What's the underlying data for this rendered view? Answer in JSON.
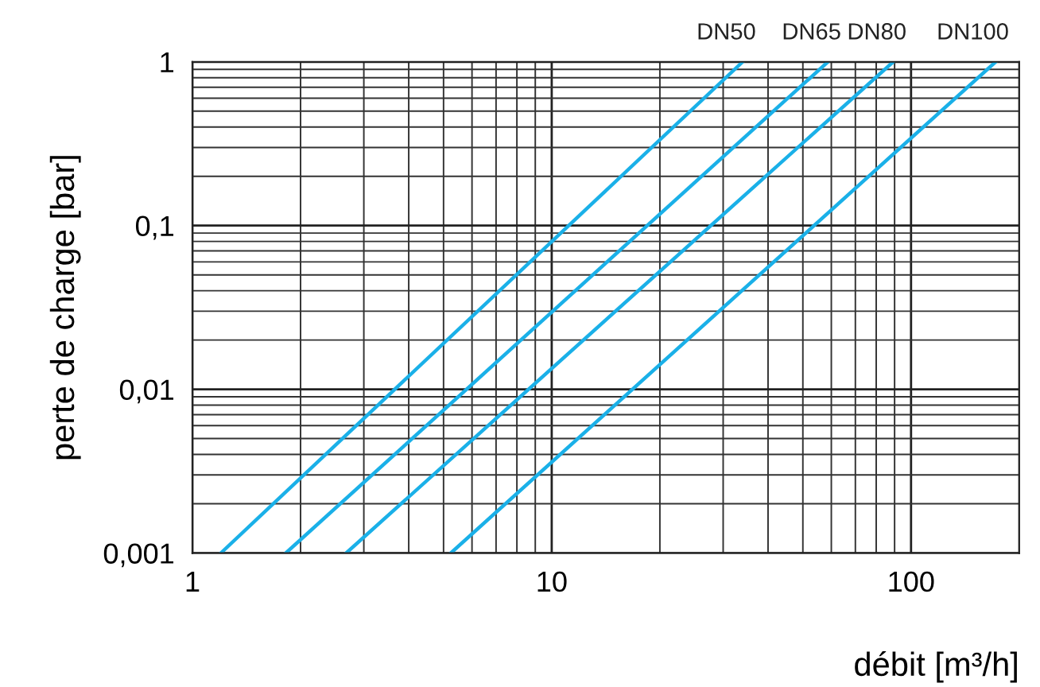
{
  "chart_data": {
    "type": "line",
    "xlabel": "débit [m³/h]",
    "ylabel": "perte de charge [bar]",
    "log": "xy",
    "grid": true,
    "marker": "none",
    "line_style": "solid",
    "xlim": [
      1,
      200
    ],
    "ylim": [
      0.001,
      1
    ],
    "xticks": [
      1,
      10,
      100
    ],
    "yticks": [
      {
        "value": 0.001,
        "label": "0,001"
      },
      {
        "value": 0.01,
        "label": "0,01"
      },
      {
        "value": 0.1,
        "label": "0,1"
      },
      1
    ],
    "series": [
      {
        "name": "DN50",
        "color": "#1ab0e8",
        "x": [
          1.2,
          34.0
        ],
        "values": [
          0.001,
          1
        ]
      },
      {
        "name": "DN65",
        "color": "#1ab0e8",
        "x": [
          1.82,
          58.7
        ],
        "values": [
          0.001,
          1
        ]
      },
      {
        "name": "DN80",
        "color": "#1ab0e8",
        "x": [
          2.68,
          89.2
        ],
        "values": [
          0.001,
          1
        ]
      },
      {
        "name": "DN100",
        "color": "#1ab0e8",
        "x": [
          5.24,
          172
        ],
        "values": [
          0.001,
          1
        ]
      }
    ]
  }
}
